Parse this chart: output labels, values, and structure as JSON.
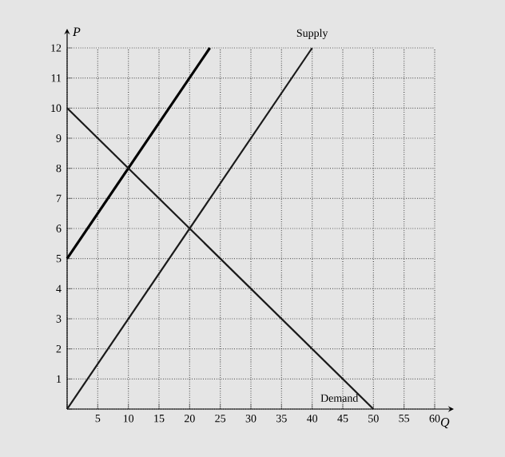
{
  "chart_data": {
    "type": "line",
    "xlabel": "Q",
    "ylabel": "P",
    "series": [
      {
        "x": [
          0,
          23.3
        ],
        "values": [
          5,
          12
        ],
        "color": "#000000"
      },
      {
        "name": "Supply",
        "x": [
          0,
          40
        ],
        "values": [
          0,
          12
        ],
        "color": "#1a1a1a"
      },
      {
        "name": "Demand",
        "x": [
          0,
          50
        ],
        "values": [
          10,
          0
        ],
        "color": "#1a1a1a"
      }
    ],
    "xlim": [
      0,
      60
    ],
    "ylim": [
      0,
      12
    ],
    "xticks": [
      {
        "value": 0,
        "label": null
      },
      5,
      10,
      15,
      20,
      25,
      30,
      35,
      40,
      45,
      50,
      55,
      60
    ],
    "yticks": [
      {
        "value": 0,
        "label": null
      },
      1,
      2,
      3,
      4,
      5,
      6,
      7,
      8,
      9,
      10,
      11,
      12
    ],
    "grid": true,
    "marker": "none",
    "line_style": "solid"
  }
}
